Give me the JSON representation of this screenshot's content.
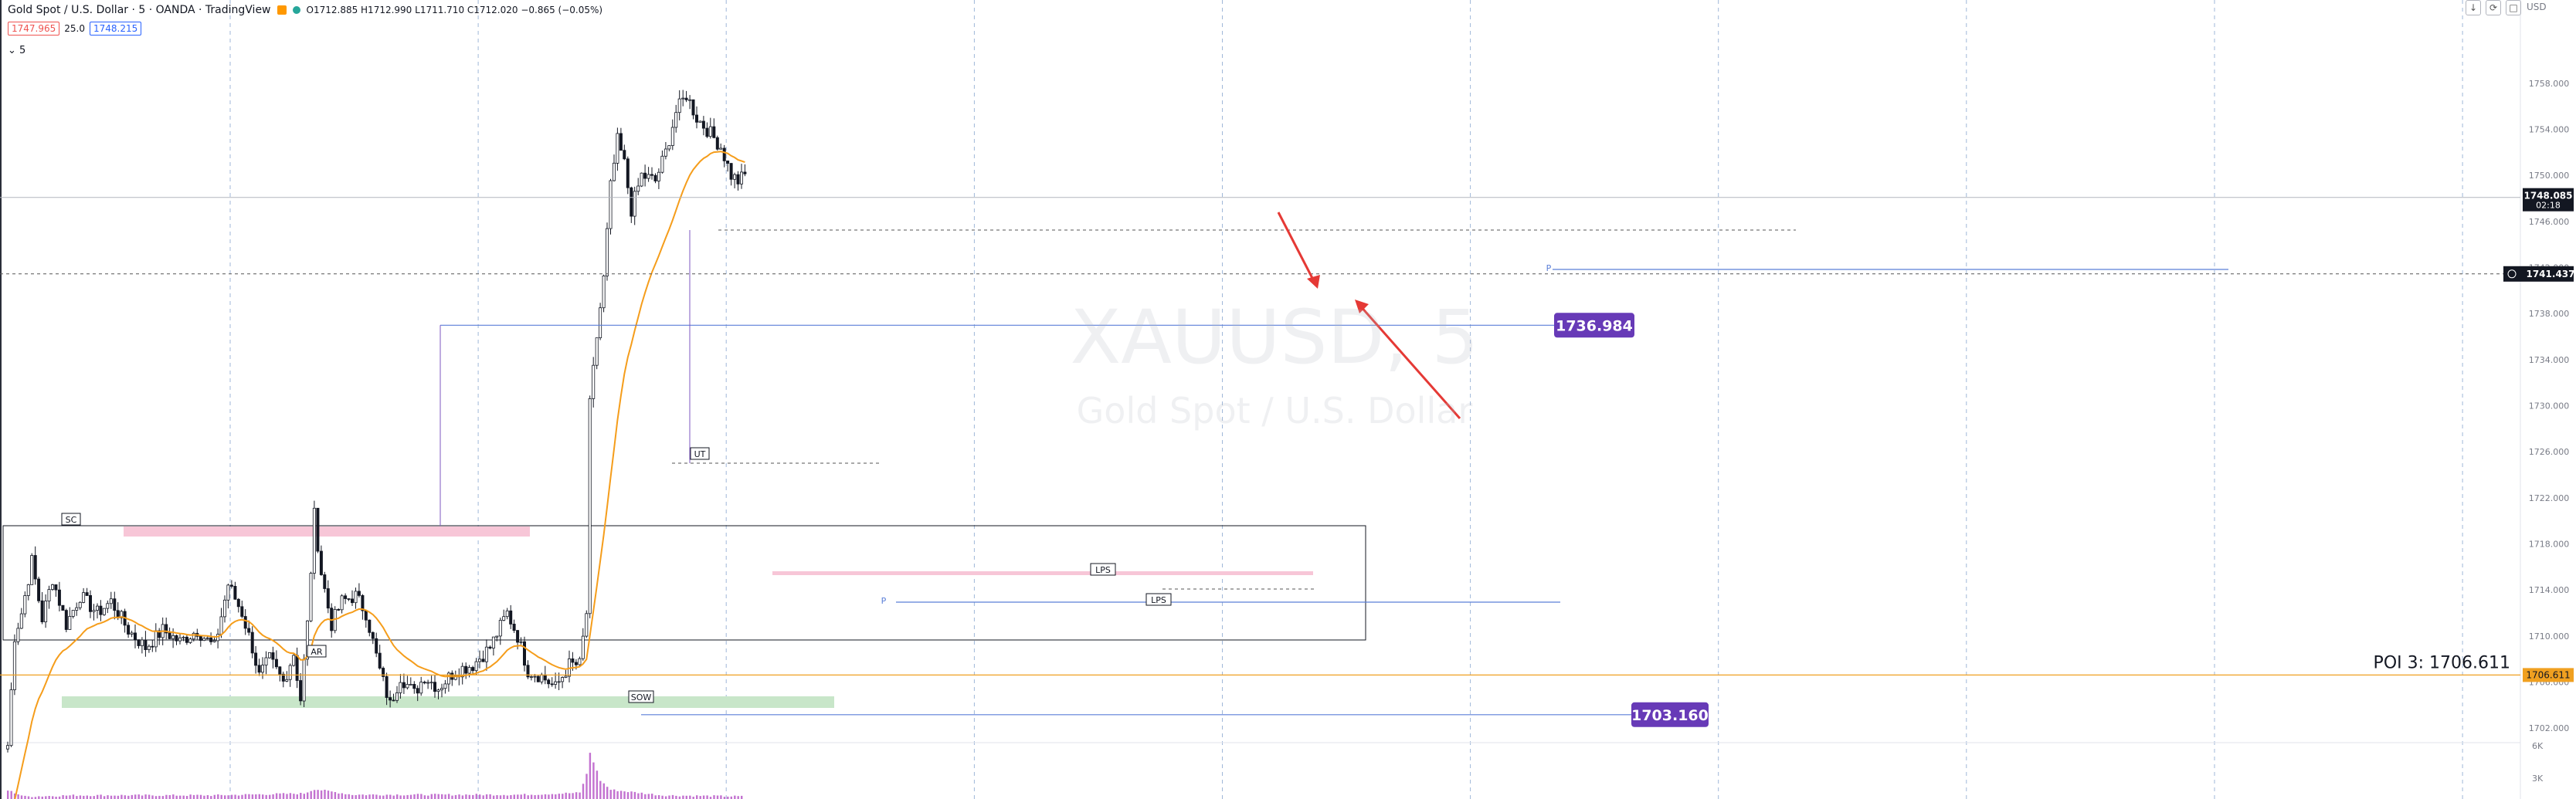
{
  "header": {
    "title": "Gold Spot / U.S. Dollar · 5 · OANDA · TradingView",
    "ohlc": "O1712.885  H1712.990  L1711.710  C1712.020  −0.865 (−0.05%)",
    "bid": "1747.965",
    "spread": "25.0",
    "ask": "1748.215",
    "indicator_count": "5"
  },
  "watermark": {
    "symbol": "XAUUSD, 5",
    "description": "Gold Spot / U.S. Dollar"
  },
  "currency_label": "USD",
  "colors": {
    "up": "#131722",
    "down": "#131722",
    "ema": "#f59d1b",
    "grid": "#9fb7d8",
    "pink": "#f7c6d7",
    "green": "#c8e6c9",
    "purple": "#673ab7",
    "orange_line": "#f0a020",
    "arrow": "#e53935",
    "line_blue": "#5b7fd8"
  },
  "chart_data": {
    "type": "candlestick",
    "symbol": "XAUUSD",
    "timeframe": "5",
    "y_ticks": [
      "1758.000",
      "1754.000",
      "1750.000",
      "1746.000",
      "1742.000",
      "1738.000",
      "1734.000",
      "1730.000",
      "1726.000",
      "1722.000",
      "1718.000",
      "1714.000",
      "1710.000",
      "1706.000",
      "1702.000"
    ],
    "ylim": [
      1700.2,
      1760.8
    ],
    "volume_ticks": [
      "6K",
      "3K"
    ],
    "candles_per_vgrid": 72,
    "anchors": [
      [
        0,
        1700.5
      ],
      [
        2,
        1710
      ],
      [
        4,
        1712
      ],
      [
        7,
        1716.5
      ],
      [
        10,
        1711.5
      ],
      [
        13,
        1715
      ],
      [
        17,
        1711
      ],
      [
        21,
        1713.5
      ],
      [
        26,
        1712
      ],
      [
        30,
        1713
      ],
      [
        35,
        1710.5
      ],
      [
        40,
        1709
      ],
      [
        45,
        1710.5
      ],
      [
        50,
        1709.5
      ],
      [
        55,
        1710.5
      ],
      [
        60,
        1709
      ],
      [
        64,
        1714.5
      ],
      [
        68,
        1712
      ],
      [
        71,
        1709
      ],
      [
        73,
        1706.5
      ],
      [
        76,
        1708
      ],
      [
        80,
        1706
      ],
      [
        83,
        1708.5
      ],
      [
        85,
        1704.5
      ],
      [
        87,
        1711
      ],
      [
        89,
        1720.5
      ],
      [
        91,
        1715.5
      ],
      [
        94,
        1711
      ],
      [
        97,
        1713
      ],
      [
        101,
        1713.5
      ],
      [
        104,
        1712
      ],
      [
        108,
        1707
      ],
      [
        111,
        1704
      ],
      [
        114,
        1706.5
      ],
      [
        118,
        1705
      ],
      [
        121,
        1706.5
      ],
      [
        125,
        1705.5
      ],
      [
        130,
        1707
      ],
      [
        135,
        1707.5
      ],
      [
        140,
        1709
      ],
      [
        145,
        1712
      ],
      [
        148,
        1710
      ],
      [
        151,
        1707
      ],
      [
        155,
        1706.5
      ],
      [
        159,
        1705.5
      ],
      [
        163,
        1707.5
      ],
      [
        166,
        1707.5
      ],
      [
        168,
        1712
      ],
      [
        169,
        1730
      ],
      [
        171,
        1736
      ],
      [
        173,
        1741
      ],
      [
        175,
        1749
      ],
      [
        177,
        1753
      ],
      [
        179,
        1751
      ],
      [
        181,
        1747
      ],
      [
        184,
        1750
      ],
      [
        188,
        1749.5
      ],
      [
        191,
        1752
      ],
      [
        194,
        1755.5
      ],
      [
        197,
        1757
      ],
      [
        200,
        1755
      ],
      [
        203,
        1754
      ],
      [
        207,
        1752.5
      ],
      [
        210,
        1750
      ],
      [
        212,
        1749.5
      ],
      [
        214,
        1750
      ]
    ],
    "vol_anchors": [
      [
        0,
        1.4
      ],
      [
        5,
        0.4
      ],
      [
        20,
        0.6
      ],
      [
        60,
        0.6
      ],
      [
        86,
        0.9
      ],
      [
        89,
        1.6
      ],
      [
        100,
        0.7
      ],
      [
        150,
        0.7
      ],
      [
        166,
        1.0
      ],
      [
        168,
        4.0
      ],
      [
        169,
        7.5
      ],
      [
        170,
        6.0
      ],
      [
        172,
        3.0
      ],
      [
        175,
        1.5
      ],
      [
        190,
        0.6
      ],
      [
        214,
        0.4
      ]
    ],
    "ema_period": 21,
    "levels": [
      {
        "label": "1736.984",
        "value": 1736.984
      },
      {
        "label": "1703.160",
        "value": 1703.16
      },
      {
        "label": "POI 3: 1706.611",
        "value": 1706.611
      }
    ],
    "last_price": "1748.085",
    "countdown": "02:18",
    "crosshair_price": "1741.437",
    "poi_axis_label": "1706.611",
    "annotations": [
      "SC",
      "AR",
      "SOW",
      "UT",
      "LPS",
      "LPS",
      "P",
      "P"
    ]
  }
}
